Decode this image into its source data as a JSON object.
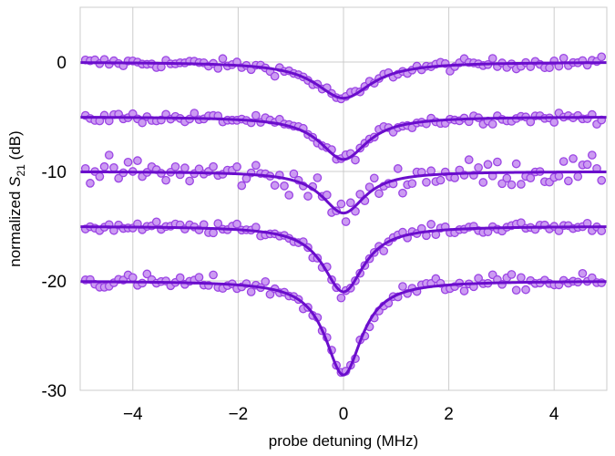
{
  "chart_data": {
    "type": "scatter",
    "xlabel": "probe detuning (MHz)",
    "ylabel": "normalized S21 (dB)",
    "ylabel_parts": {
      "pre": "normalized ",
      "symbol": "S",
      "subscript": "21",
      "post": " (dB)"
    },
    "xlim": [
      -5,
      5
    ],
    "ylim": [
      -30,
      5
    ],
    "xticks": [
      -4,
      -2,
      0,
      2,
      4
    ],
    "xtick_labels": [
      "−4",
      "−2",
      "0",
      "2",
      "4"
    ],
    "yticks": [
      0,
      -10,
      -20,
      -30
    ],
    "ytick_labels": [
      "0",
      "-10",
      "-20",
      "-30"
    ],
    "grid": true,
    "legend": "none",
    "colors": {
      "fit_line": "#6a0dcc",
      "marker_fill": "#cc9bf2",
      "marker_edge": "#9b45e4",
      "grid": "#cccccc",
      "axes": "#cccccc"
    },
    "series": [
      {
        "offset": 0,
        "dip_min": -3.3,
        "fwhm_mhz": 1.3
      },
      {
        "offset": -5,
        "dip_min": -8.9,
        "fwhm_mhz": 1.1
      },
      {
        "offset": -10,
        "dip_min": -13.8,
        "fwhm_mhz": 1.0
      },
      {
        "offset": -15,
        "dip_min": -21.0,
        "fwhm_mhz": 0.95
      },
      {
        "offset": -20,
        "dip_min": -28.6,
        "fwhm_mhz": 0.85
      }
    ]
  }
}
